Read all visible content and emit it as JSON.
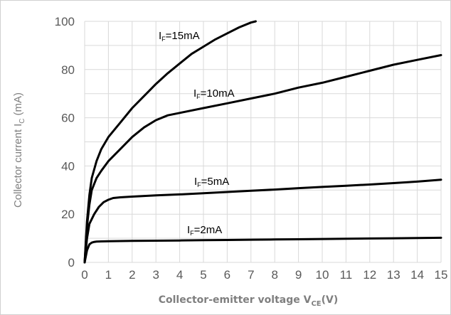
{
  "chart_data": {
    "type": "line",
    "xlabel": "Collector-emitter voltage V",
    "xlabel_sub": "CE",
    "xlabel_unit": "(V)",
    "ylabel": "Collector current I",
    "ylabel_sub": "C",
    "ylabel_unit": "(mA)",
    "xlim": [
      0,
      15
    ],
    "ylim": [
      0,
      100
    ],
    "xticks": [
      "0",
      "1",
      "2",
      "3",
      "4",
      "5",
      "6",
      "7",
      "8",
      "9",
      "10",
      "11",
      "12",
      "13",
      "14",
      "15"
    ],
    "yticks": [
      "0",
      "20",
      "40",
      "60",
      "80",
      "100"
    ],
    "grid": true,
    "series": [
      {
        "name": "IF=15mA",
        "label_text": "I",
        "label_sub": "F",
        "label_value": "=15mA",
        "x": [
          0,
          0.1,
          0.2,
          0.3,
          0.5,
          0.7,
          1,
          1.5,
          2,
          2.5,
          3,
          3.5,
          4,
          4.5,
          5,
          5.5,
          6,
          6.5,
          7,
          7.2
        ],
        "y": [
          0,
          17,
          28,
          35,
          42,
          47,
          52,
          58,
          64,
          69,
          74,
          78.5,
          82.5,
          86.5,
          89.5,
          92.5,
          95,
          97.5,
          99.5,
          100
        ]
      },
      {
        "name": "IF=10mA",
        "label_text": "I",
        "label_sub": "F",
        "label_value": "=10mA",
        "x": [
          0,
          0.1,
          0.2,
          0.3,
          0.5,
          0.7,
          1,
          1.5,
          2,
          2.5,
          3,
          3.5,
          4,
          5,
          6,
          7,
          8,
          9,
          10,
          11,
          12,
          13,
          14,
          15
        ],
        "y": [
          0,
          15,
          24,
          30,
          35,
          38,
          42,
          47,
          52,
          56,
          59,
          61,
          62,
          64,
          66,
          68,
          70,
          72.5,
          74.5,
          77,
          79.5,
          82,
          84,
          86
        ]
      },
      {
        "name": "IF=5mA",
        "label_text": "I",
        "label_sub": "F",
        "label_value": "=5mA",
        "x": [
          0,
          0.1,
          0.2,
          0.4,
          0.6,
          0.8,
          1,
          1.2,
          1.5,
          2,
          3,
          4,
          5,
          6,
          7,
          8,
          9,
          10,
          11,
          12,
          13,
          14,
          15
        ],
        "y": [
          0,
          10,
          16,
          20,
          23,
          25,
          26,
          26.7,
          27,
          27.3,
          27.8,
          28.2,
          28.7,
          29.2,
          29.7,
          30.2,
          30.8,
          31.3,
          31.8,
          32.3,
          32.9,
          33.5,
          34.3
        ]
      },
      {
        "name": "IF=2mA",
        "label_text": "I",
        "label_sub": "F",
        "label_value": "=2mA",
        "x": [
          0,
          0.1,
          0.2,
          0.3,
          0.4,
          0.5,
          0.7,
          1,
          2,
          3,
          4,
          5,
          6,
          7,
          8,
          9,
          10,
          11,
          12,
          13,
          14,
          15
        ],
        "y": [
          0,
          5,
          7.5,
          8.2,
          8.5,
          8.6,
          8.7,
          8.8,
          8.9,
          9.0,
          9.1,
          9.2,
          9.3,
          9.4,
          9.5,
          9.6,
          9.7,
          9.8,
          9.9,
          10.0,
          10.1,
          10.2
        ]
      }
    ]
  }
}
